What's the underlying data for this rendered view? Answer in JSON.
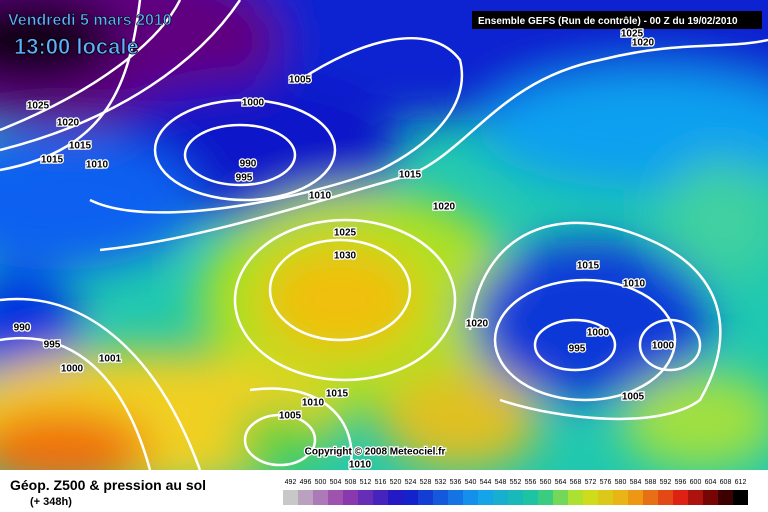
{
  "title": {
    "date": "Vendredi 5 mars 2010",
    "time": "13:00 locale"
  },
  "header": {
    "run": "Ensemble GEFS (Run de contrôle)  - 00 Z du 19/02/2010"
  },
  "isobar_labels": [
    "1025",
    "1020",
    "1005",
    "1000",
    "1025",
    "1020",
    "1015",
    "1010",
    "1015",
    "990",
    "995",
    "1015",
    "1010",
    "1020",
    "1025",
    "1030",
    "1015",
    "1010",
    "990",
    "1020",
    "1000",
    "995",
    "1000",
    "995",
    "1001",
    "1000",
    "1015",
    "1010",
    "1005",
    "1005",
    "1010"
  ],
  "copyright": "Copyright © 2008 Meteociel.fr",
  "footer": {
    "title": "Géop. Z500 & pression au sol",
    "lead": "(+ 348h)"
  },
  "legend": {
    "levels": [
      492,
      496,
      500,
      504,
      508,
      512,
      516,
      520,
      524,
      528,
      532,
      536,
      540,
      544,
      548,
      552,
      556,
      560,
      564,
      568,
      572,
      576,
      580,
      584,
      588,
      592,
      596,
      600,
      604,
      608,
      612
    ]
  }
}
